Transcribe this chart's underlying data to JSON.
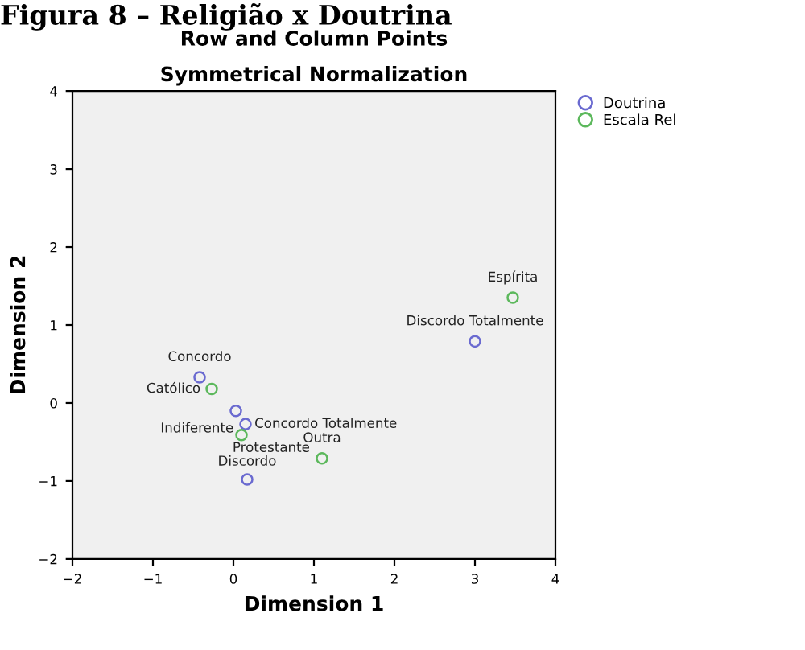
{
  "chart_data": {
    "type": "scatter",
    "title": "Row and Column Points",
    "subtitle": "Symmetrical Normalization",
    "xlabel": "Dimension 1",
    "ylabel": "Dimension 2",
    "series": [
      {
        "name": "Doutrina",
        "color": "#6a6ad0",
        "x": [
          -0.42,
          0.03,
          0.15,
          0.17,
          3.0
        ],
        "values": [
          0.33,
          -0.1,
          -0.27,
          -0.98,
          0.79
        ]
      },
      {
        "name": "Escala Rel",
        "color": "#5cb85c",
        "x": [
          -0.27,
          0.1,
          1.1,
          3.47
        ],
        "values": [
          0.18,
          -0.41,
          -0.71,
          1.35
        ]
      }
    ],
    "annotations": [
      "Figura 8 – Religião x Doutrina",
      {
        "text": "Concordo",
        "x": -0.42,
        "y": 0.33
      },
      {
        "text": "Indiferente",
        "x": 0.03,
        "y": -0.1
      },
      {
        "text": "Concordo Totalmente",
        "x": 0.15,
        "y": -0.27
      },
      {
        "text": "Discordo",
        "x": 0.17,
        "y": -0.98
      },
      {
        "text": "Discordo Totalmente",
        "x": 3.0,
        "y": 0.79
      },
      {
        "text": "Católico",
        "x": -0.27,
        "y": 0.18
      },
      {
        "text": "Protestante",
        "x": 0.1,
        "y": -0.41
      },
      {
        "text": "Outra",
        "x": 1.1,
        "y": -0.71
      },
      {
        "text": "Espírita",
        "x": 3.47,
        "y": 1.35
      }
    ],
    "xlim": [
      -2,
      4
    ],
    "xticks": [
      {
        "value": -2,
        "label": "−2"
      },
      {
        "value": -1,
        "label": "−1"
      },
      0,
      1,
      2,
      3,
      4
    ],
    "ylim": [
      -2,
      4
    ],
    "yticks": [
      {
        "value": -2,
        "label": "−2"
      },
      {
        "value": -1,
        "label": "−1"
      },
      0,
      1,
      2,
      3,
      4
    ],
    "grid": false,
    "legend": "top right",
    "marker": "circle"
  }
}
